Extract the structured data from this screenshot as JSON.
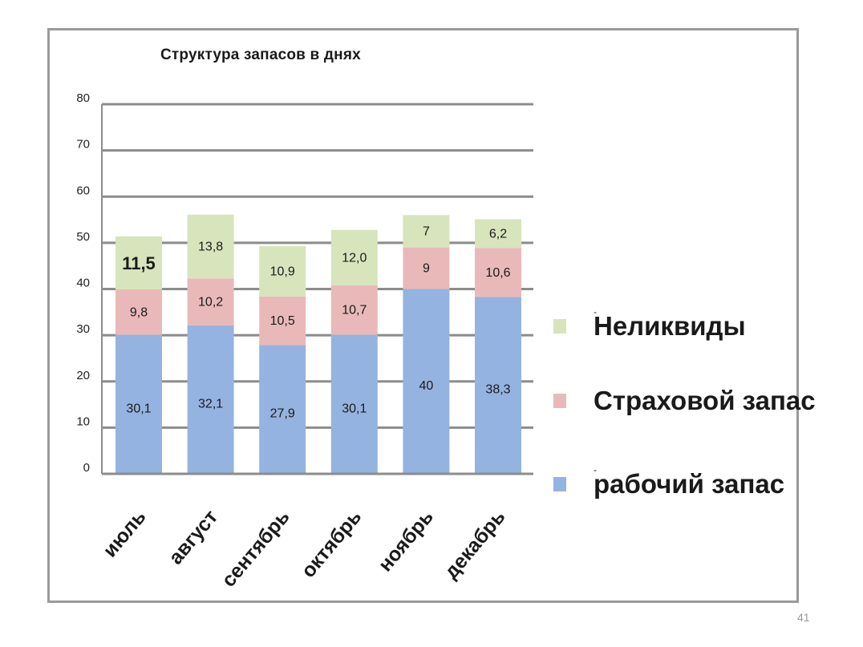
{
  "chart_data": {
    "type": "bar",
    "stacked": true,
    "title": "Структура  запасов  в днях",
    "categories": [
      "июль",
      "август",
      "сентябрь",
      "октябрь",
      "ноябрь",
      "декабрь"
    ],
    "series": [
      {
        "name": "рабочий запас",
        "color": "#95b3e0",
        "values": [
          30.1,
          32.1,
          27.9,
          30.1,
          40,
          38.3
        ],
        "labels": [
          "30,1",
          "32,1",
          "27,9",
          "30,1",
          "40",
          "38,3"
        ]
      },
      {
        "name": "Страховой запас",
        "color": "#e9b9b9",
        "values": [
          9.8,
          10.2,
          10.5,
          10.7,
          9,
          10.6
        ],
        "labels": [
          "9,8",
          "10,2",
          "10,5",
          "10,7",
          "9",
          "10,6"
        ]
      },
      {
        "name": "Неликвиды",
        "color": "#d8e4bc",
        "values": [
          11.5,
          13.8,
          10.9,
          12.0,
          7,
          6.2
        ],
        "labels": [
          "11,5",
          "13,8",
          "10,9",
          "12,0",
          "7",
          "6,2"
        ]
      }
    ],
    "ylim": [
      0,
      80
    ],
    "yticks": [
      0,
      10,
      20,
      30,
      40,
      50,
      60,
      70,
      80
    ],
    "grid": true,
    "legend": "right"
  },
  "legend": {
    "items": [
      {
        "label": "Неликвиды",
        "color": "#d8e4bc"
      },
      {
        "label": "Страховой запас",
        "color": "#e9b9b9"
      },
      {
        "label": "рабочий запас",
        "color": "#95b3e0"
      }
    ],
    "dash": "-"
  },
  "page_number": "41"
}
